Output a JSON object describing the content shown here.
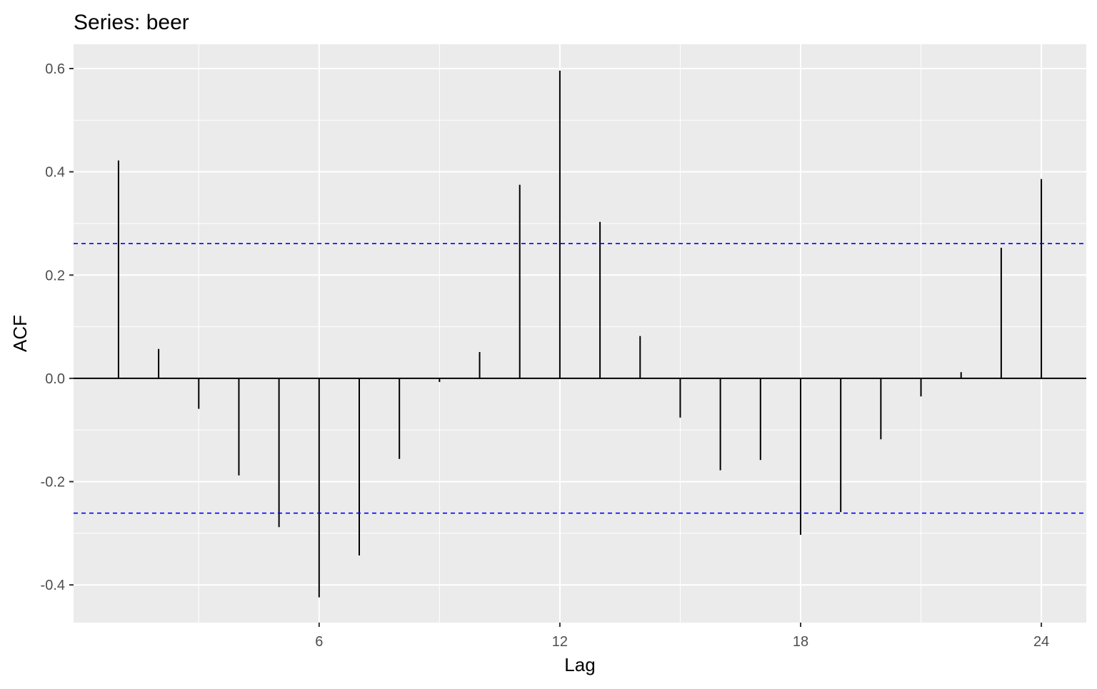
{
  "chart_data": {
    "type": "bar",
    "title": "Series: beer",
    "xlabel": "Lag",
    "ylabel": "ACF",
    "xlim": [
      -0.12,
      25.12
    ],
    "ylim": [
      -0.473,
      0.647
    ],
    "x_ticks": [
      6,
      12,
      18,
      24
    ],
    "x_tick_labels": [
      "6",
      "12",
      "18",
      "24"
    ],
    "y_ticks": [
      -0.4,
      -0.2,
      0.0,
      0.2,
      0.4,
      0.6
    ],
    "y_tick_labels": [
      "-0.4",
      "-0.2",
      "0.0",
      "0.2",
      "0.4",
      "0.6"
    ],
    "grid": true,
    "lags": [
      1,
      2,
      3,
      4,
      5,
      6,
      7,
      8,
      9,
      10,
      11,
      12,
      13,
      14,
      15,
      16,
      17,
      18,
      19,
      20,
      21,
      22,
      23,
      24
    ],
    "values": [
      0.422,
      0.057,
      -0.059,
      -0.188,
      -0.288,
      -0.424,
      -0.343,
      -0.156,
      -0.007,
      0.051,
      0.375,
      0.596,
      0.303,
      0.082,
      -0.076,
      -0.178,
      -0.158,
      -0.303,
      -0.259,
      -0.118,
      -0.035,
      0.012,
      0.253,
      0.386
    ],
    "confidence_bounds": [
      0.261,
      -0.261
    ],
    "colors": {
      "panel": "#EBEBEB",
      "grid": "#FFFFFF",
      "bars": "#000000",
      "bounds": "#0000FF"
    }
  }
}
